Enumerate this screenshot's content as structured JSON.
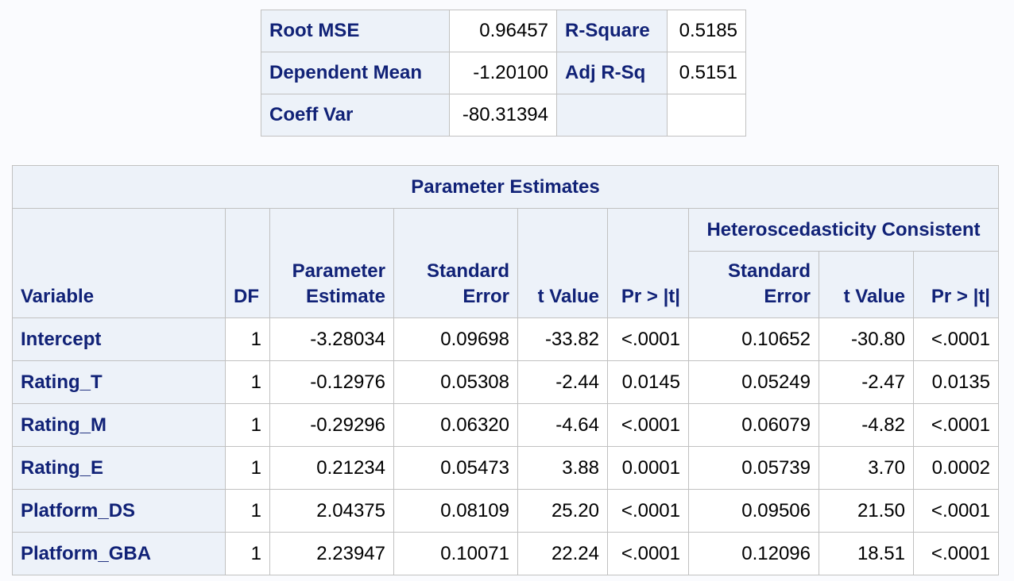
{
  "fit_stats": {
    "rows": [
      {
        "label1": "Root MSE",
        "value1": "0.96457",
        "label2": "R-Square",
        "value2": "0.5185"
      },
      {
        "label1": "Dependent Mean",
        "value1": "-1.20100",
        "label2": "Adj R-Sq",
        "value2": "0.5151"
      },
      {
        "label1": "Coeff Var",
        "value1": "-80.31394",
        "label2": "",
        "value2": ""
      }
    ]
  },
  "param_estimates": {
    "title": "Parameter Estimates",
    "span_header": "Heteroscedasticity Consistent",
    "columns": {
      "variable": "Variable",
      "df": "DF",
      "estimate_line1": "Parameter",
      "estimate_line2": "Estimate",
      "stderr_line1": "Standard",
      "stderr_line2": "Error",
      "tvalue": "t Value",
      "pvalue": "Pr > |t|",
      "hc_stderr_line1": "Standard",
      "hc_stderr_line2": "Error",
      "hc_tvalue": "t Value",
      "hc_pvalue": "Pr > |t|"
    },
    "rows": [
      {
        "variable": "Intercept",
        "df": "1",
        "estimate": "-3.28034",
        "stderr": "0.09698",
        "tvalue": "-33.82",
        "pvalue": "<.0001",
        "hc_stderr": "0.10652",
        "hc_tvalue": "-30.80",
        "hc_pvalue": "<.0001"
      },
      {
        "variable": "Rating_T",
        "df": "1",
        "estimate": "-0.12976",
        "stderr": "0.05308",
        "tvalue": "-2.44",
        "pvalue": "0.0145",
        "hc_stderr": "0.05249",
        "hc_tvalue": "-2.47",
        "hc_pvalue": "0.0135"
      },
      {
        "variable": "Rating_M",
        "df": "1",
        "estimate": "-0.29296",
        "stderr": "0.06320",
        "tvalue": "-4.64",
        "pvalue": "<.0001",
        "hc_stderr": "0.06079",
        "hc_tvalue": "-4.82",
        "hc_pvalue": "<.0001"
      },
      {
        "variable": "Rating_E",
        "df": "1",
        "estimate": "0.21234",
        "stderr": "0.05473",
        "tvalue": "3.88",
        "pvalue": "0.0001",
        "hc_stderr": "0.05739",
        "hc_tvalue": "3.70",
        "hc_pvalue": "0.0002"
      },
      {
        "variable": "Platform_DS",
        "df": "1",
        "estimate": "2.04375",
        "stderr": "0.08109",
        "tvalue": "25.20",
        "pvalue": "<.0001",
        "hc_stderr": "0.09506",
        "hc_tvalue": "21.50",
        "hc_pvalue": "<.0001"
      },
      {
        "variable": "Platform_GBA",
        "df": "1",
        "estimate": "2.23947",
        "stderr": "0.10071",
        "tvalue": "22.24",
        "pvalue": "<.0001",
        "hc_stderr": "0.12096",
        "hc_tvalue": "18.51",
        "hc_pvalue": "<.0001"
      }
    ]
  },
  "colors": {
    "header_background": "#edf2f9",
    "header_text": "#112277",
    "border": "#c1c1c1",
    "page_background": "#fafbfe"
  }
}
